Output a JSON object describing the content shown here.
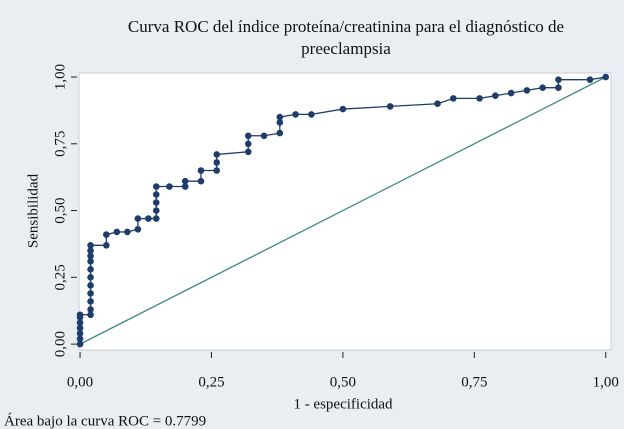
{
  "chart_data": {
    "type": "line",
    "title": [
      "Curva ROC del índice proteína/creatinina para el diagnóstico de",
      "preeclampsia"
    ],
    "xlabel": "1 - especificidad",
    "ylabel": "Sensibilidad",
    "note": "Área bajo la curva ROC = 0.7799",
    "xlim": [
      -0.002,
      1.01
    ],
    "ylim": [
      -0.022,
      1.015
    ],
    "xticks": [
      {
        "value": 0,
        "label": "0,00"
      },
      {
        "value": 0.25,
        "label": "0,25"
      },
      {
        "value": 0.5,
        "label": "0,50"
      },
      {
        "value": 0.75,
        "label": "0,75"
      },
      {
        "value": 1,
        "label": "1,00"
      }
    ],
    "yticks": [
      {
        "value": 0,
        "label": "0,00"
      },
      {
        "value": 0.25,
        "label": "0,25"
      },
      {
        "value": 0.5,
        "label": "0,50"
      },
      {
        "value": 0.75,
        "label": "0,75"
      },
      {
        "value": 1,
        "label": "1,00"
      }
    ],
    "series": [
      {
        "color": "#1f3d6b",
        "x": [
          0,
          0,
          0,
          0,
          0,
          0,
          0,
          0.02,
          0.02,
          0.02,
          0.02,
          0.02,
          0.02,
          0.02,
          0.02,
          0.02,
          0.02,
          0.02,
          0.05,
          0.05,
          0.07,
          0.09,
          0.11,
          0.11,
          0.13,
          0.145,
          0.145,
          0.145,
          0.145,
          0.145,
          0.17,
          0.2,
          0.2,
          0.23,
          0.23,
          0.26,
          0.26,
          0.26,
          0.32,
          0.32,
          0.32,
          0.35,
          0.38,
          0.38,
          0.38,
          0.41,
          0.44,
          0.5,
          0.59,
          0.68,
          0.71,
          0.76,
          0.79,
          0.82,
          0.85,
          0.88,
          0.91,
          0.91,
          0.97,
          1
        ],
        "values": [
          0,
          0.02,
          0.04,
          0.06,
          0.08,
          0.1,
          0.11,
          0.11,
          0.13,
          0.16,
          0.19,
          0.22,
          0.25,
          0.28,
          0.31,
          0.33,
          0.35,
          0.37,
          0.37,
          0.41,
          0.42,
          0.42,
          0.43,
          0.47,
          0.47,
          0.47,
          0.5,
          0.53,
          0.56,
          0.59,
          0.59,
          0.59,
          0.61,
          0.61,
          0.65,
          0.65,
          0.68,
          0.71,
          0.72,
          0.75,
          0.78,
          0.78,
          0.79,
          0.83,
          0.85,
          0.86,
          0.86,
          0.88,
          0.89,
          0.9,
          0.92,
          0.92,
          0.93,
          0.94,
          0.95,
          0.96,
          0.96,
          0.99,
          0.99,
          1
        ]
      }
    ],
    "reference_line": {
      "color": "#3d8a80",
      "x": [
        0,
        1
      ],
      "values": [
        0,
        1
      ]
    }
  }
}
